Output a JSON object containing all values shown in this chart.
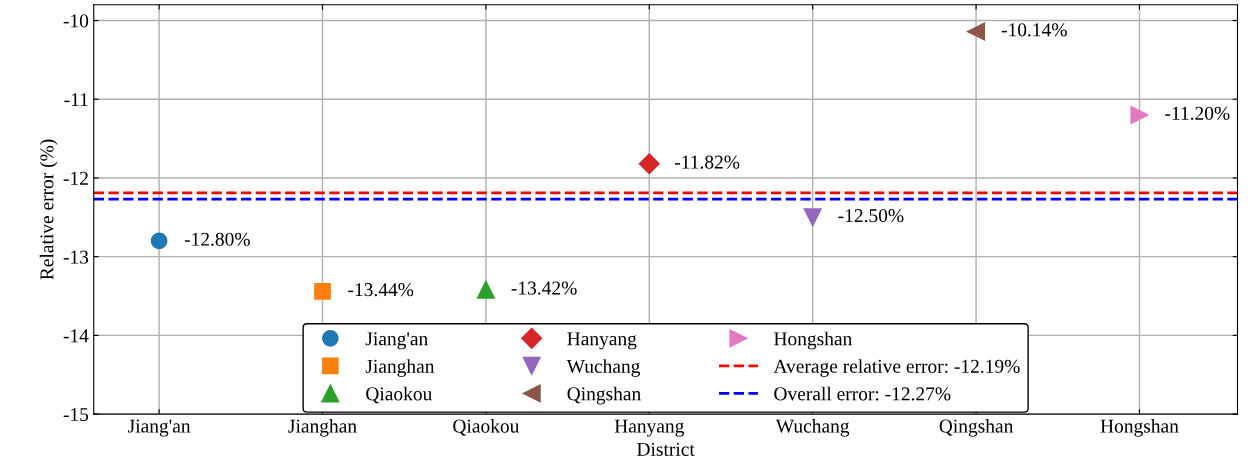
{
  "chart_data": {
    "type": "scatter",
    "xlabel": "District",
    "ylabel": "Relative error (%)",
    "categories": [
      "Jiang'an",
      "Jianghan",
      "Qiaokou",
      "Hanyang",
      "Wuchang",
      "Qingshan",
      "Hongshan"
    ],
    "series": [
      {
        "name": "Jiang'an",
        "color": "#1f77b4",
        "marker": "circle",
        "x": [
          "Jiang'an"
        ],
        "values": [
          -12.8
        ],
        "value_labels": [
          "-12.80%"
        ]
      },
      {
        "name": "Jianghan",
        "color": "#ff7f0e",
        "marker": "square",
        "x": [
          "Jianghan"
        ],
        "values": [
          -13.44
        ],
        "value_labels": [
          "-13.44%"
        ]
      },
      {
        "name": "Qiaokou",
        "color": "#2ca02c",
        "marker": "triangle",
        "x": [
          "Qiaokou"
        ],
        "values": [
          -13.42
        ],
        "value_labels": [
          "-13.42%"
        ]
      },
      {
        "name": "Hanyang",
        "color": "#d62728",
        "marker": "diamond",
        "x": [
          "Hanyang"
        ],
        "values": [
          -11.82
        ],
        "value_labels": [
          "-11.82%"
        ]
      },
      {
        "name": "Wuchang",
        "color": "#9467bd",
        "marker": "triangle_down",
        "x": [
          "Wuchang"
        ],
        "values": [
          -12.5
        ],
        "value_labels": [
          "-12.50%"
        ]
      },
      {
        "name": "Qingshan",
        "color": "#8c564b",
        "marker": "triangle_left",
        "x": [
          "Qingshan"
        ],
        "values": [
          -10.14
        ],
        "value_labels": [
          "-10.14%"
        ]
      },
      {
        "name": "Hongshan",
        "color": "#e377c2",
        "marker": "triangle_right",
        "x": [
          "Hongshan"
        ],
        "values": [
          -11.2
        ],
        "value_labels": [
          "-11.20%"
        ]
      }
    ],
    "ref_lines": [
      {
        "axis": "y",
        "value": -12.19,
        "label": "Average relative error: -12.19%",
        "color": "#ff0000",
        "line_style": "dashed"
      },
      {
        "axis": "y",
        "value": -12.27,
        "label": "Overall error: -12.27%",
        "color": "#0000ff",
        "line_style": "dashed"
      }
    ],
    "ylim": [
      -15,
      -9.8
    ],
    "yticks": [
      -15,
      -14,
      -13,
      -12,
      -11,
      -10
    ],
    "grid": true,
    "legend": "bottom"
  }
}
